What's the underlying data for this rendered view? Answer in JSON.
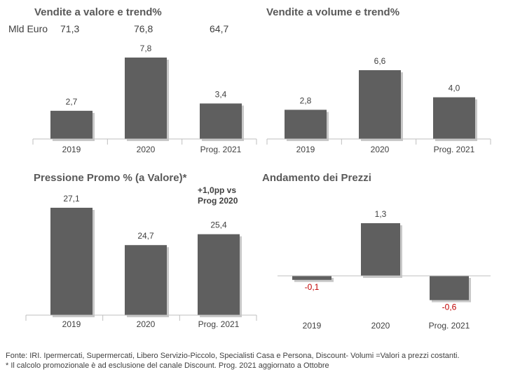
{
  "colors": {
    "bar": "#5f5f5f",
    "bar_shadow": "#c8c8c8",
    "axis": "#bfbfbf",
    "text": "#404040",
    "negative": "#c00000"
  },
  "header": {
    "mld_label": "Mld Euro",
    "values": [
      "71,3",
      "76,8",
      "64,7"
    ]
  },
  "note": {
    "line1": "+1,0pp vs",
    "line2": "Prog 2020"
  },
  "footer": {
    "line1": "Fonte: IRI. Ipermercati, Supermercati, Libero Servizio-Piccolo, Specialisti Casa e Persona, Discount-  Volumi =Valori a prezzi costanti.",
    "line2": "* Il calcolo promozionale è ad esclusione del canale Discount. Prog. 2021 aggiornato a Ottobre"
  },
  "chart_data": [
    {
      "type": "bar",
      "title": "Vendite a valore e trend%",
      "categories": [
        "2019",
        "2020",
        "Prog. 2021"
      ],
      "values": [
        2.7,
        7.8,
        3.4
      ],
      "labels": [
        "2,7",
        "7,8",
        "3,4"
      ],
      "ylim": [
        0,
        7.8
      ]
    },
    {
      "type": "bar",
      "title": "Vendite a volume e trend%",
      "categories": [
        "2019",
        "2020",
        "Prog. 2021"
      ],
      "values": [
        2.8,
        6.6,
        4.0
      ],
      "labels": [
        "2,8",
        "6,6",
        "4,0"
      ],
      "ylim": [
        0,
        6.6
      ]
    },
    {
      "type": "bar",
      "title": "Pressione Promo % (a Valore)*",
      "categories": [
        "2019",
        "2020",
        "Prog. 2021"
      ],
      "values": [
        27.1,
        24.7,
        25.4
      ],
      "labels": [
        "27,1",
        "24,7",
        "25,4"
      ],
      "ylim": [
        20.2,
        27.1
      ]
    },
    {
      "type": "bar",
      "title": "Andamento dei Prezzi",
      "categories": [
        "2019",
        "2020",
        "Prog. 2021"
      ],
      "values": [
        -0.1,
        1.3,
        -0.6
      ],
      "labels": [
        "-0,1",
        "1,3",
        "-0,6"
      ],
      "ylim": [
        -0.6,
        1.3
      ]
    }
  ]
}
